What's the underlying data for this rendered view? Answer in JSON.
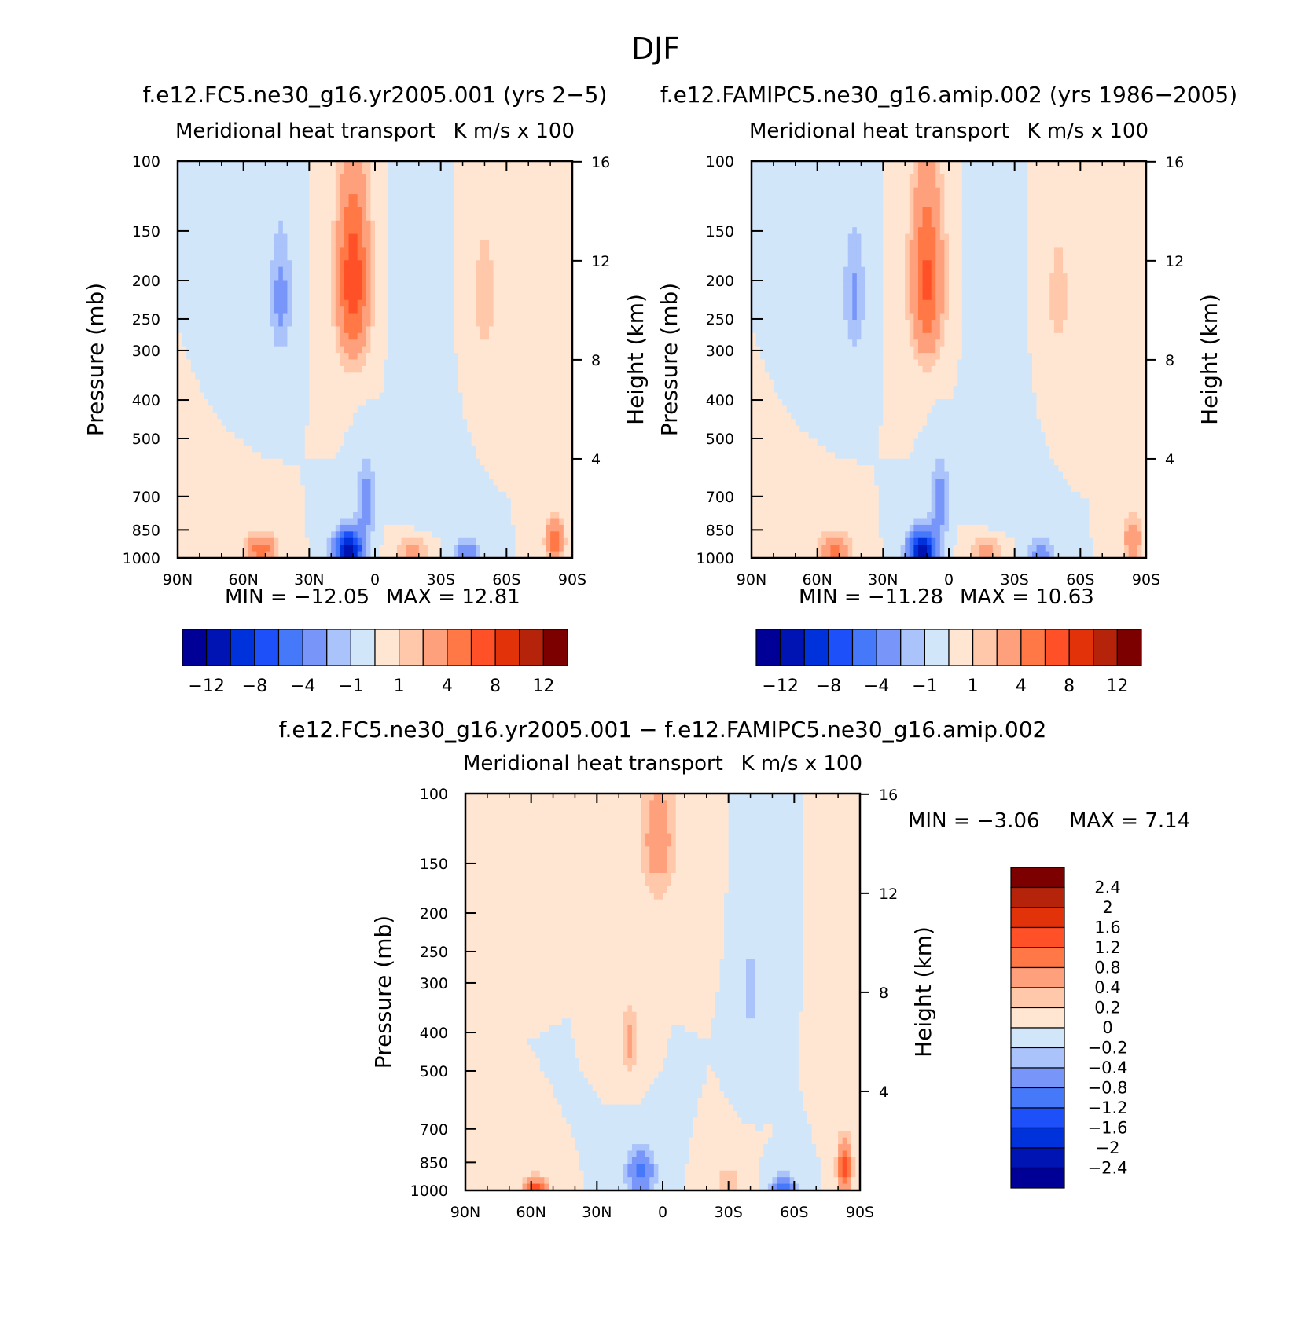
{
  "figure": {
    "title": "DJF",
    "panel_titles": {
      "left": "f.e12.FC5.ne30_g16.yr2005.001 (yrs 2−5)",
      "right": "f.e12.FAMIPC5.ne30_g16.amip.002 (yrs 1986−2005)",
      "diff": "f.e12.FC5.ne30_g16.yr2005.001 − f.e12.FAMIPC5.ne30_g16.amip.002"
    }
  },
  "chart_data": [
    {
      "type": "heatmap",
      "id": "left",
      "title": "f.e12.FC5.ne30_g16.yr2005.001 (yrs 2−5)",
      "subtitle_left": "Meridional heat transport",
      "subtitle_right": "K m/s x 100",
      "ylabel": "Pressure (mb)",
      "y2label": "Height (km)",
      "xticks": [
        "90N",
        "60N",
        "30N",
        "0",
        "30S",
        "60S",
        "90S"
      ],
      "yticks": [
        100,
        150,
        200,
        250,
        300,
        400,
        500,
        700,
        850,
        1000
      ],
      "y2ticks": [
        16,
        12,
        8,
        4
      ],
      "ylim": [
        1000,
        100
      ],
      "min_text": "MIN = −12.05",
      "max_text": "MAX = 12.81",
      "min": -12.05,
      "max": 12.81,
      "levels": [
        -12,
        -10,
        -8,
        -6,
        -4,
        -2,
        -1,
        0,
        1,
        2,
        4,
        6,
        8,
        10,
        12
      ],
      "colorbar_labels": [
        "−12",
        "−8",
        "−4",
        "−1",
        "1",
        "4",
        "8",
        "12"
      ],
      "features": [
        {
          "lat": 10,
          "p": 200,
          "amp": 7.5,
          "slat": 7,
          "sp": 100
        },
        {
          "lat": 43,
          "p": 220,
          "amp": -2.5,
          "slat": 5,
          "sp": 80
        },
        {
          "lat": -50,
          "p": 220,
          "amp": 1.5,
          "slat": 6,
          "sp": 100
        },
        {
          "lat": -20,
          "p": 550,
          "amp": -1.0,
          "slat": 8,
          "sp": 350
        },
        {
          "lat": 52,
          "p": 960,
          "amp": 5,
          "slat": 7,
          "sp": 90
        },
        {
          "lat": 12,
          "p": 960,
          "amp": -12,
          "slat": 6,
          "sp": 110
        },
        {
          "lat": 4,
          "p": 720,
          "amp": -3,
          "slat": 4,
          "sp": 160
        },
        {
          "lat": -17,
          "p": 960,
          "amp": 3,
          "slat": 7,
          "sp": 90
        },
        {
          "lat": -42,
          "p": 970,
          "amp": -3.5,
          "slat": 5,
          "sp": 70
        },
        {
          "lat": -82,
          "p": 900,
          "amp": 5,
          "slat": 4,
          "sp": 110
        }
      ]
    },
    {
      "type": "heatmap",
      "id": "right",
      "title": "f.e12.FAMIPC5.ne30_g16.amip.002 (yrs 1986−2005)",
      "subtitle_left": "Meridional heat transport",
      "subtitle_right": "K m/s x 100",
      "ylabel": "Pressure (mb)",
      "y2label": "Height (km)",
      "xticks": [
        "90N",
        "60N",
        "30N",
        "0",
        "30S",
        "60S",
        "90S"
      ],
      "yticks": [
        100,
        150,
        200,
        250,
        300,
        400,
        500,
        700,
        850,
        1000
      ],
      "y2ticks": [
        16,
        12,
        8,
        4
      ],
      "ylim": [
        1000,
        100
      ],
      "min_text": "MIN = −11.28",
      "max_text": "MAX = 10.63",
      "min": -11.28,
      "max": 10.63,
      "levels": [
        -12,
        -10,
        -8,
        -6,
        -4,
        -2,
        -1,
        0,
        1,
        2,
        4,
        6,
        8,
        10,
        12
      ],
      "colorbar_labels": [
        "−12",
        "−8",
        "−4",
        "−1",
        "1",
        "4",
        "8",
        "12"
      ],
      "features": [
        {
          "lat": 10,
          "p": 200,
          "amp": 6.5,
          "slat": 7,
          "sp": 100
        },
        {
          "lat": 43,
          "p": 220,
          "amp": -2.3,
          "slat": 5,
          "sp": 80
        },
        {
          "lat": -50,
          "p": 220,
          "amp": 1.4,
          "slat": 6,
          "sp": 100
        },
        {
          "lat": -20,
          "p": 550,
          "amp": -1.0,
          "slat": 8,
          "sp": 350
        },
        {
          "lat": 52,
          "p": 960,
          "amp": 4.5,
          "slat": 7,
          "sp": 90
        },
        {
          "lat": 12,
          "p": 960,
          "amp": -11,
          "slat": 6,
          "sp": 110
        },
        {
          "lat": 4,
          "p": 720,
          "amp": -3,
          "slat": 4,
          "sp": 160
        },
        {
          "lat": -17,
          "p": 960,
          "amp": 3,
          "slat": 7,
          "sp": 90
        },
        {
          "lat": -42,
          "p": 970,
          "amp": -3.2,
          "slat": 5,
          "sp": 70
        },
        {
          "lat": -84,
          "p": 900,
          "amp": 4,
          "slat": 4,
          "sp": 110
        }
      ]
    },
    {
      "type": "heatmap",
      "id": "diff",
      "title": "f.e12.FC5.ne30_g16.yr2005.001 − f.e12.FAMIPC5.ne30_g16.amip.002",
      "subtitle_left": "Meridional heat transport",
      "subtitle_right": "K m/s x 100",
      "ylabel": "Pressure (mb)",
      "y2label": "Height (km)",
      "xticks": [
        "90N",
        "60N",
        "30N",
        "0",
        "30S",
        "60S",
        "90S"
      ],
      "yticks": [
        100,
        150,
        200,
        250,
        300,
        400,
        500,
        700,
        850,
        1000
      ],
      "y2ticks": [
        16,
        12,
        8,
        4
      ],
      "ylim": [
        1000,
        100
      ],
      "min_text": "MIN = −3.06",
      "max_text": "MAX = 7.14",
      "min": -3.06,
      "max": 7.14,
      "levels": [
        -2.4,
        -2,
        -1.6,
        -1.2,
        -0.8,
        -0.4,
        -0.2,
        0,
        0.2,
        0.4,
        0.8,
        1.2,
        1.6,
        2,
        2.4
      ],
      "colorbar_labels": [
        "2.4",
        "2",
        "1.6",
        "1.2",
        "0.8",
        "0.4",
        "0.2",
        "0",
        "−0.2",
        "−0.4",
        "−0.8",
        "−1.2",
        "−1.6",
        "−2",
        "−2.4"
      ],
      "features": [
        {
          "lat": 2,
          "p": 130,
          "amp": 0.6,
          "slat": 8,
          "sp": 50
        },
        {
          "lat": 15,
          "p": 420,
          "amp": 0.5,
          "slat": 4,
          "sp": 80
        },
        {
          "lat": 58,
          "p": 990,
          "amp": 1.4,
          "slat": 5,
          "sp": 60
        },
        {
          "lat": 10,
          "p": 900,
          "amp": -0.9,
          "slat": 6,
          "sp": 120
        },
        {
          "lat": -30,
          "p": 960,
          "amp": 0.4,
          "slat": 6,
          "sp": 80
        },
        {
          "lat": -55,
          "p": 980,
          "amp": -1.0,
          "slat": 5,
          "sp": 60
        },
        {
          "lat": -83,
          "p": 880,
          "amp": 1.4,
          "slat": 3,
          "sp": 130
        },
        {
          "lat": -40,
          "p": 320,
          "amp": -0.3,
          "slat": 3,
          "sp": 100
        }
      ]
    }
  ],
  "colors": {
    "palette": [
      "#000096",
      "#0014B4",
      "#0032DC",
      "#1E50FA",
      "#4678FA",
      "#7896FA",
      "#AAC3FA",
      "#D2E6FA",
      "#FFE6D2",
      "#FFC8AA",
      "#FFA07D",
      "#FF7846",
      "#FF5028",
      "#E1320A",
      "#B4230A",
      "#7D0000"
    ],
    "axis": "#000000"
  }
}
